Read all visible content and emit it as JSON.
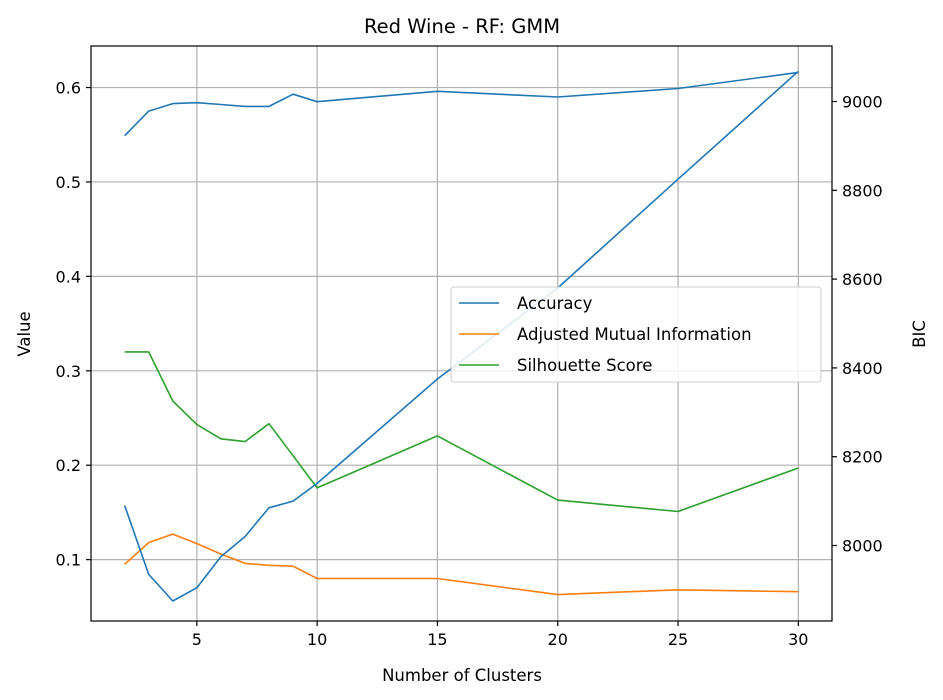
{
  "chart_data": {
    "type": "line",
    "title": "Red Wine - RF: GMM",
    "xlabel": "Number of Clusters",
    "ylabel": "Value",
    "y2label": "BIC",
    "xlim": [
      0.6,
      31.4
    ],
    "ylim": [
      0.035,
      0.644
    ],
    "y2lim": [
      7830,
      9125
    ],
    "grid": true,
    "legend_position": "center-right",
    "x_ticks": [
      5,
      10,
      15,
      20,
      25,
      30
    ],
    "y_ticks": [
      0.1,
      0.2,
      0.3,
      0.4,
      0.5,
      0.6
    ],
    "y_tick_labels": [
      "0.1",
      "0.2",
      "0.3",
      "0.4",
      "0.5",
      "0.6"
    ],
    "y2_ticks": [
      8000,
      8200,
      8400,
      8600,
      8800,
      9000
    ],
    "x": [
      2,
      3,
      4,
      5,
      6,
      7,
      8,
      9,
      10,
      15,
      20,
      25,
      30
    ],
    "series": [
      {
        "name": "Accuracy",
        "axis": "left",
        "color": "#1f77b4",
        "values": [
          0.549,
          0.575,
          0.583,
          0.584,
          0.582,
          0.58,
          0.58,
          0.593,
          0.585,
          0.596,
          0.59,
          0.599,
          0.616
        ]
      },
      {
        "name": "Adjusted Mutual Information",
        "axis": "left",
        "color": "#ff7f0e",
        "values": [
          0.095,
          0.118,
          0.127,
          0.117,
          0.106,
          0.096,
          0.094,
          0.093,
          0.08,
          0.08,
          0.063,
          0.068,
          0.066
        ]
      },
      {
        "name": "Silhouette Score",
        "axis": "left",
        "color": "#2ca02c",
        "values": [
          0.32,
          0.32,
          0.268,
          0.243,
          0.228,
          0.225,
          0.244,
          0.21,
          0.176,
          0.231,
          0.163,
          0.151,
          0.197
        ]
      },
      {
        "name": "BIC",
        "axis": "right",
        "color": "#1f77b4",
        "legend": false,
        "values": [
          8090,
          7935,
          7875,
          7905,
          7975,
          8020,
          8085,
          8100,
          8140,
          8375,
          8580,
          8825,
          9068
        ]
      }
    ]
  }
}
